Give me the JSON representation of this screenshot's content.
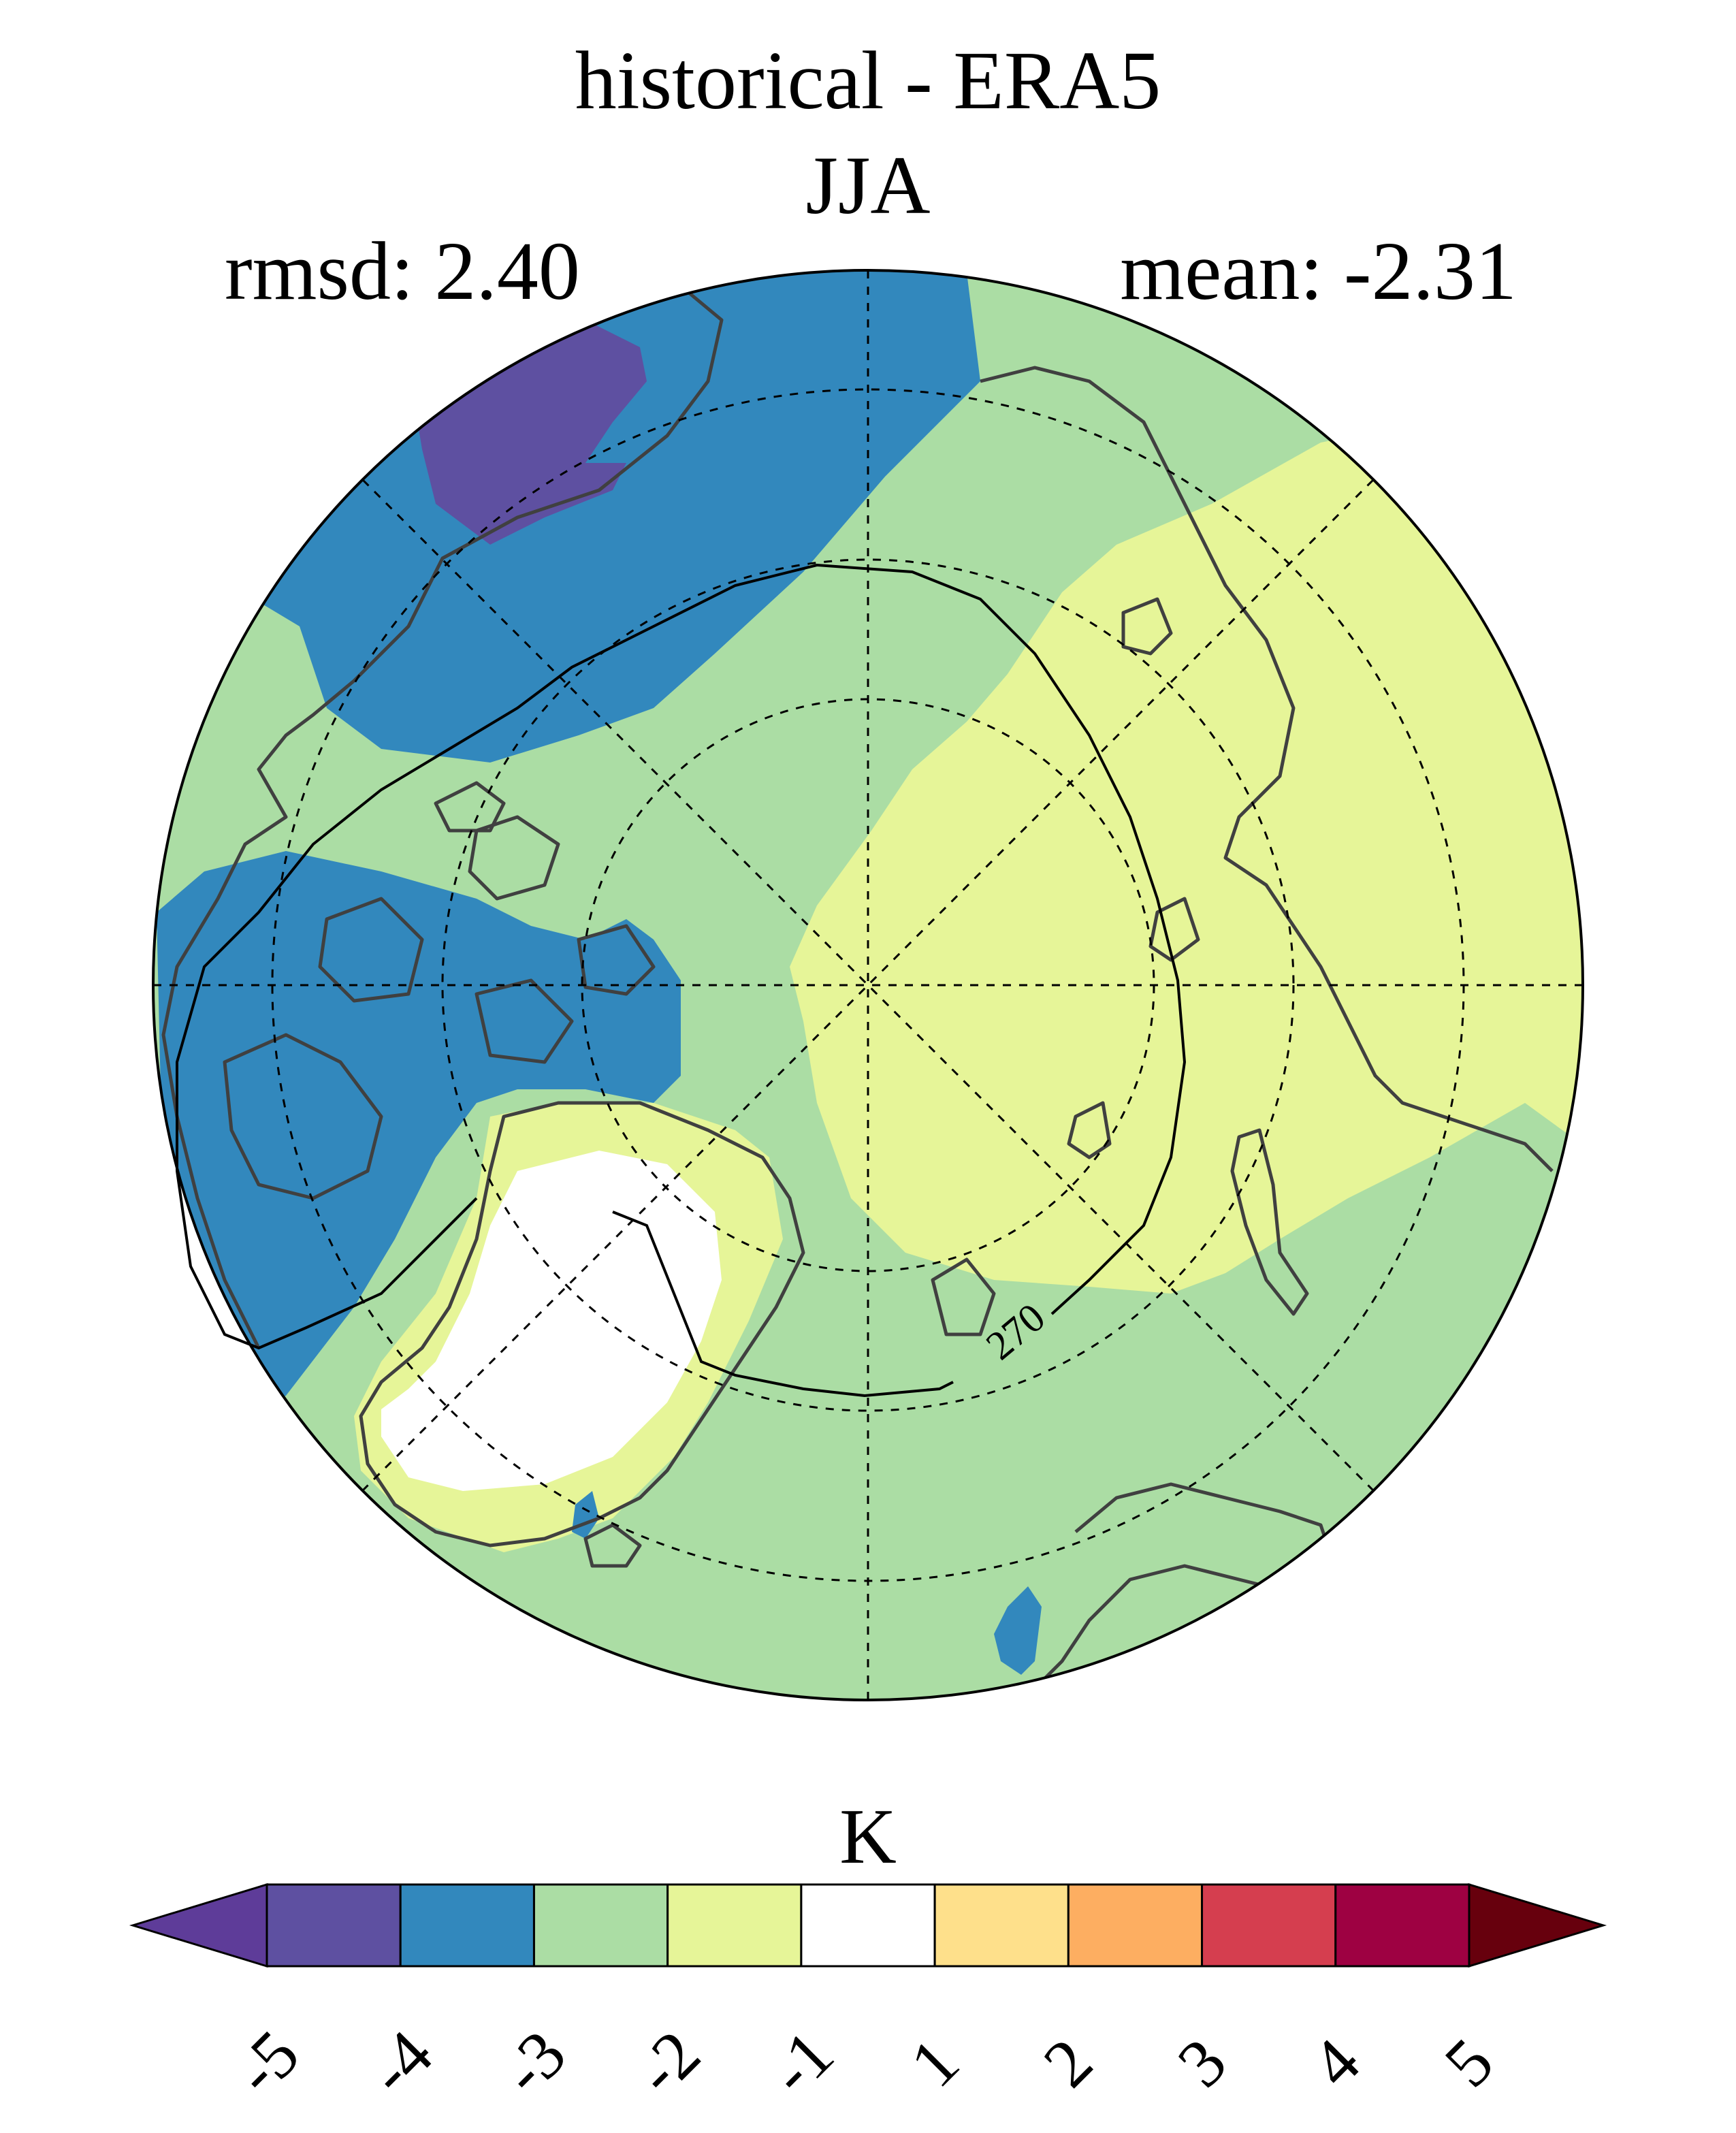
{
  "title": {
    "line1": "historical - ERA5",
    "line2": "JJA"
  },
  "stats": {
    "rmsd": "rmsd: 2.40",
    "mean": "mean: -2.31"
  },
  "map": {
    "projection": "north-polar-stereographic",
    "contour_label": "270",
    "colors": {
      "land_outline": "#404040",
      "graticule": "#000000"
    }
  },
  "colorbar": {
    "units": "K",
    "tick_labels": [
      "-5",
      "-4",
      "-3",
      "-2",
      "-1",
      "1",
      "2",
      "3",
      "4",
      "5"
    ],
    "colors": {
      "below": "#5e3c99",
      "bins": [
        "#5e50a1",
        "#3288bd",
        "#abdda4",
        "#e6f598",
        "#ffffff",
        "#fee08b",
        "#fdae61",
        "#d53e4f",
        "#9e0142"
      ],
      "above": "#67000d"
    }
  }
}
